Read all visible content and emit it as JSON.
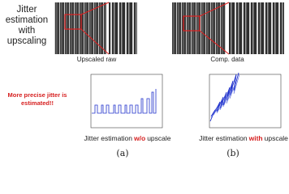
{
  "left_label": "Jitter estimation with upscaling",
  "annotation": "More precise jitter is estimated!!",
  "panels": [
    {
      "image_caption": "Upscaled raw",
      "plot_caption": [
        "Jitter estimation",
        "w/o",
        "upscale"
      ],
      "label": "(a)"
    },
    {
      "image_caption": "Comp. data",
      "plot_caption": [
        "Jitter estimation",
        "with",
        "upscale"
      ],
      "label": "(b)"
    }
  ]
}
